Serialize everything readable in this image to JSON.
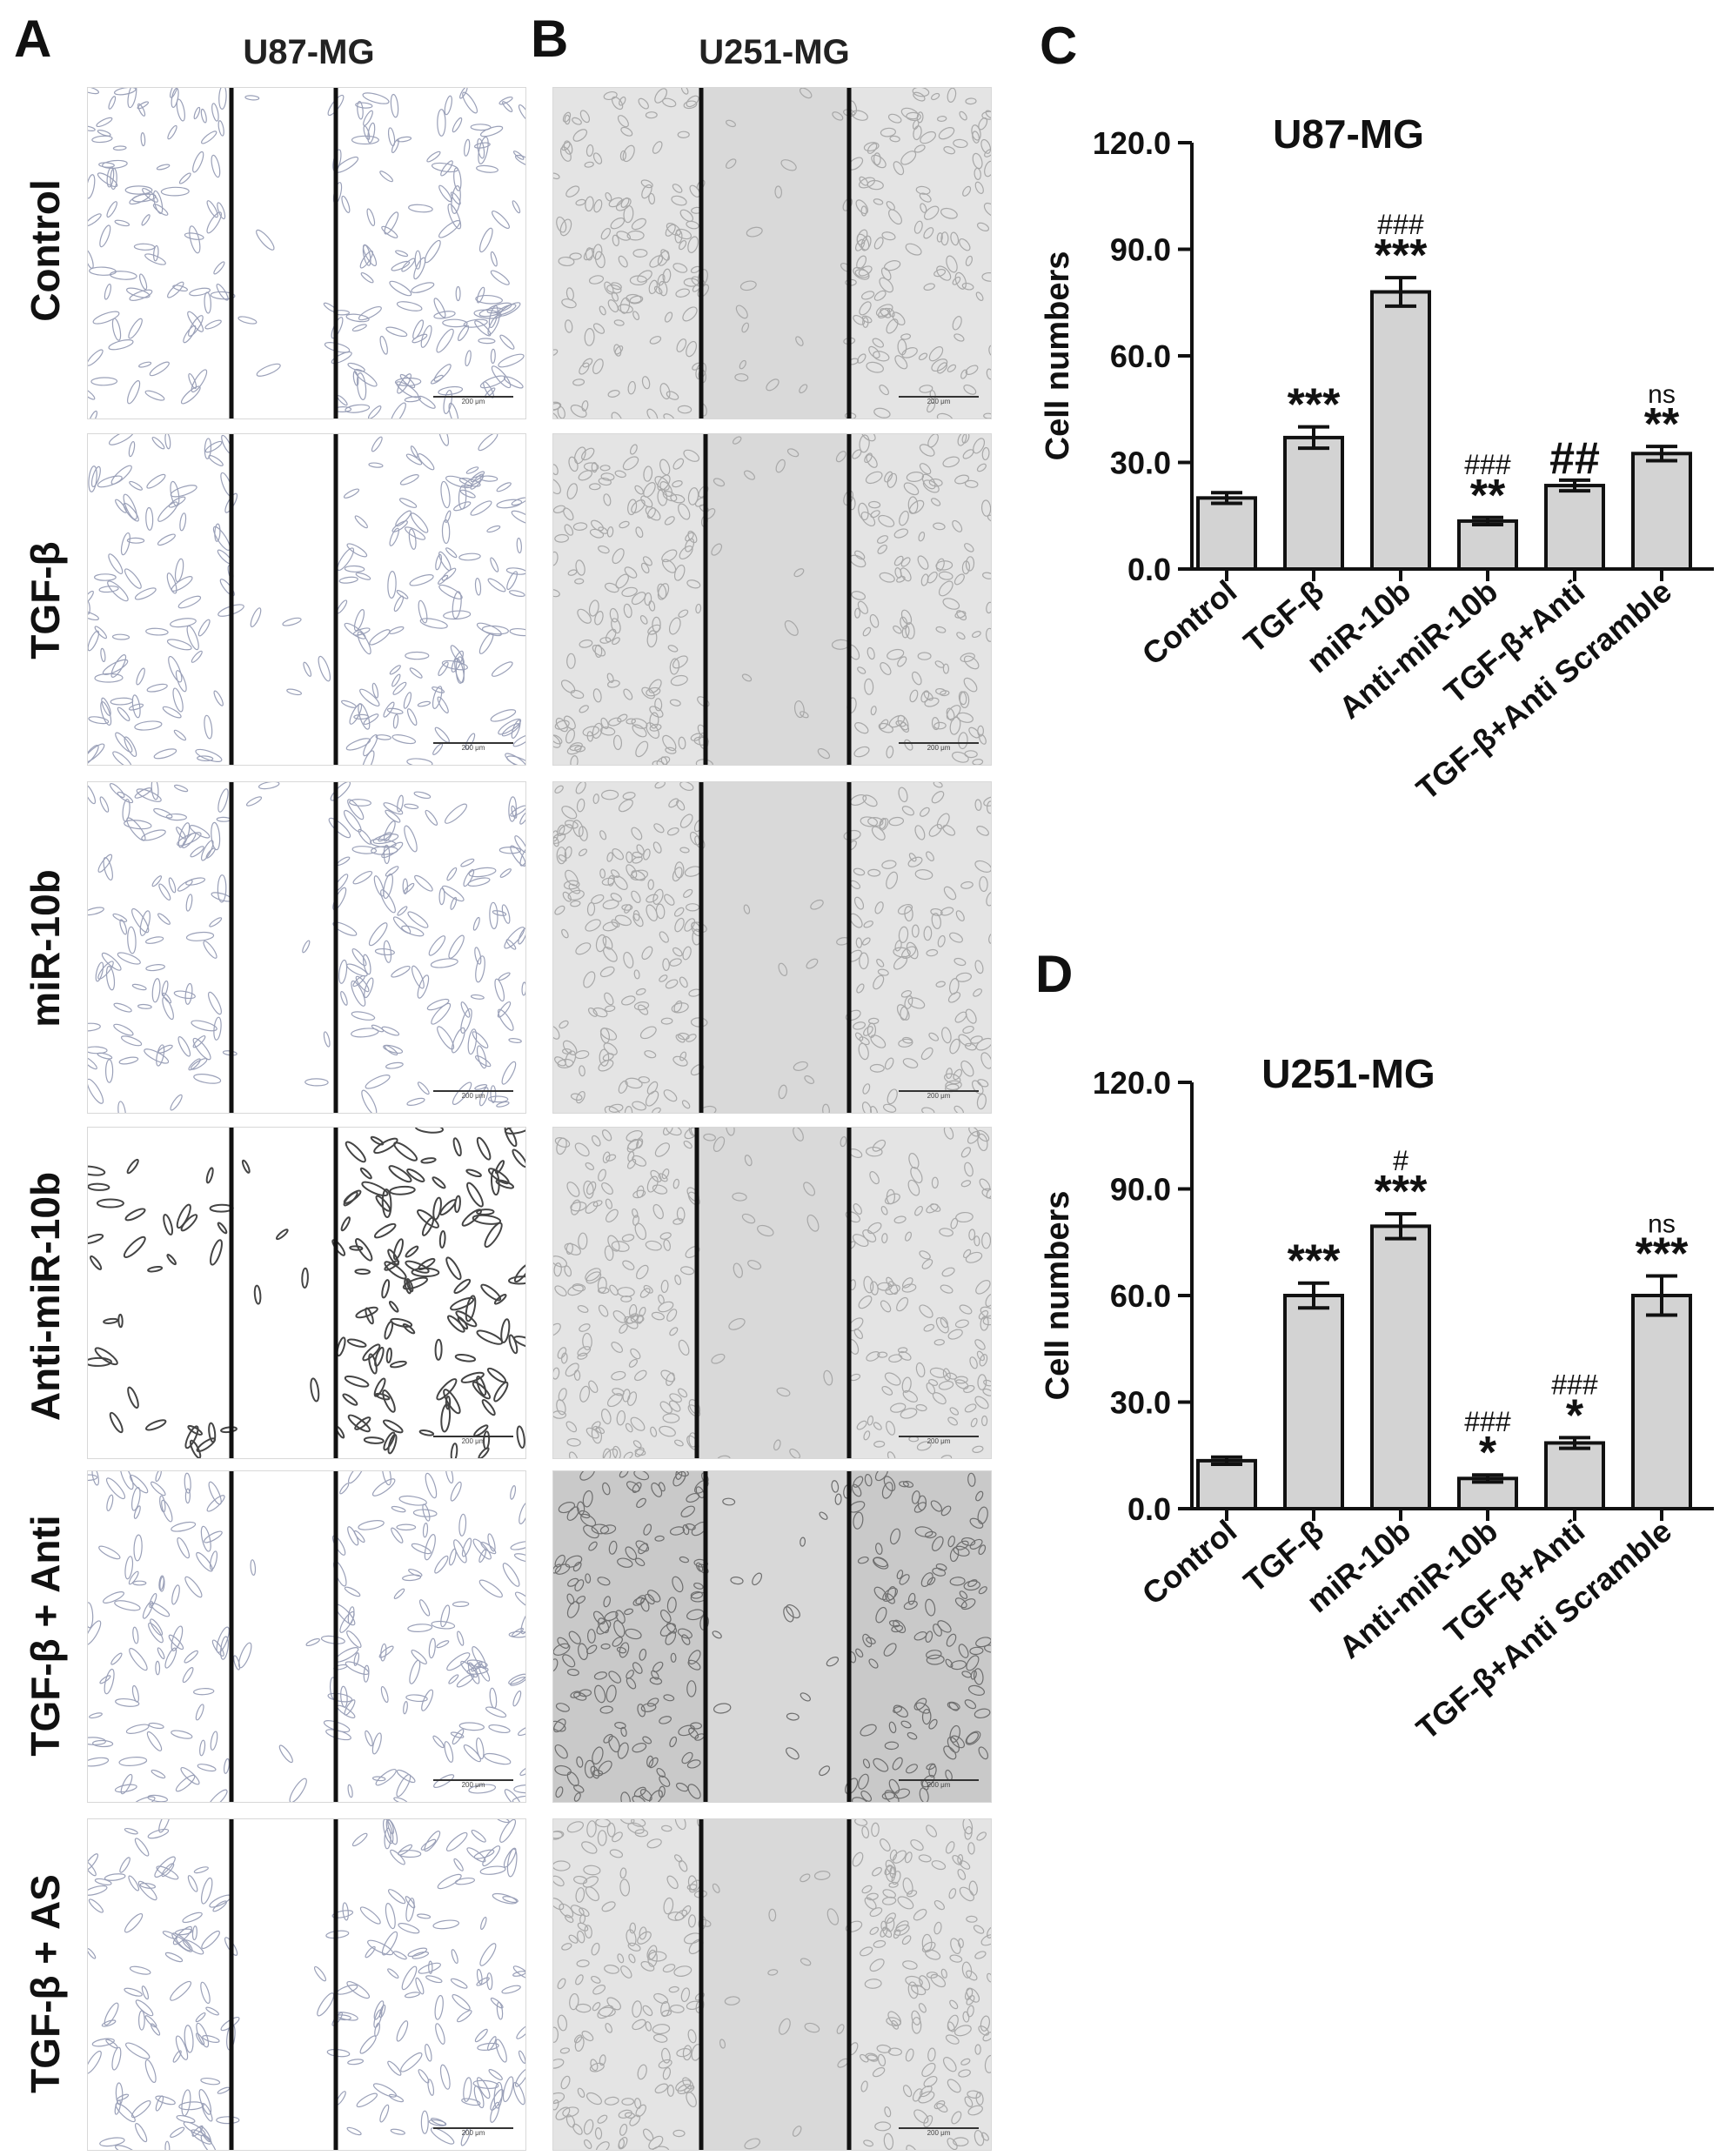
{
  "panels": {
    "A": {
      "letter": "A",
      "title": "U87-MG"
    },
    "B": {
      "letter": "B",
      "title": "U251-MG"
    },
    "C": {
      "letter": "C"
    },
    "D": {
      "letter": "D"
    }
  },
  "rows": [
    "Control",
    "TGF-β",
    "miR-10b",
    "Anti-miR-10b",
    "TGF-β + Anti",
    "TGF-β + AS"
  ],
  "scale_bar_label": "200 μm",
  "chart_data": [
    {
      "type": "bar",
      "title": "U87-MG",
      "ylabel": "Cell numbers",
      "ylim": [
        0,
        120
      ],
      "yticks": [
        "0.0",
        "30.0",
        "60.0",
        "90.0",
        "120.0"
      ],
      "categories": [
        "Control",
        "TGF-β",
        "miR-10b",
        "Anti-miR-10b",
        "TGF-β+Anti",
        "TGF-β+Anti Scramble"
      ],
      "values": [
        20,
        37,
        78,
        13.5,
        23.5,
        32.5
      ],
      "errors": [
        1.5,
        3.0,
        4.0,
        1.0,
        1.5,
        2.0
      ],
      "annotations": [
        [
          "",
          ""
        ],
        [
          "",
          "***"
        ],
        [
          "###",
          "***"
        ],
        [
          "###",
          "**"
        ],
        [
          "",
          "##"
        ],
        [
          "ns",
          "**"
        ]
      ],
      "bar_color": "#d3d3d3"
    },
    {
      "type": "bar",
      "title": "U251-MG",
      "ylabel": "Cell numbers",
      "ylim": [
        0,
        120
      ],
      "yticks": [
        "0.0",
        "30.0",
        "60.0",
        "90.0",
        "120.0"
      ],
      "categories": [
        "Control",
        "TGF-β",
        "miR-10b",
        "Anti-miR-10b",
        "TGF-β+Anti",
        "TGF-β+Anti Scramble"
      ],
      "values": [
        13.5,
        60,
        79.5,
        8.5,
        18.5,
        60
      ],
      "errors": [
        1.0,
        3.5,
        3.5,
        1.0,
        1.5,
        5.5
      ],
      "annotations": [
        [
          "",
          ""
        ],
        [
          "",
          "***"
        ],
        [
          "#",
          "***"
        ],
        [
          "###",
          "*"
        ],
        [
          "###",
          "*"
        ],
        [
          "ns",
          "***"
        ]
      ],
      "bar_color": "#d3d3d3"
    }
  ]
}
